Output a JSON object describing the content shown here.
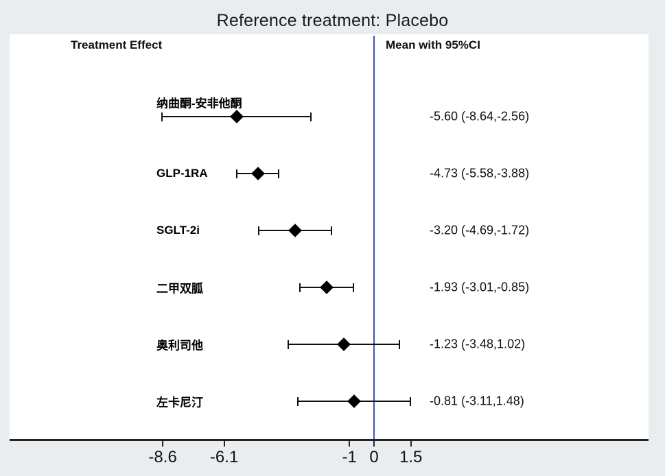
{
  "title": "Reference treatment: Placebo",
  "headers": {
    "left": "Treatment Effect",
    "right": "Mean with 95%CI"
  },
  "colors": {
    "background": "#e9edf0",
    "plot_background": "#ffffff",
    "reference_line": "#3d52b8",
    "axis": "#222222",
    "marker": "#000000"
  },
  "chart_data": {
    "type": "forest",
    "title": "Reference treatment: Placebo",
    "reference_treatment": "Placebo",
    "columns": [
      "Treatment Effect",
      "Mean with 95%CI"
    ],
    "treatments": [
      {
        "label": "纳曲酮-安非他酮",
        "mean": -5.6,
        "ci_low": -8.64,
        "ci_high": -2.56,
        "display": "-5.60 (-8.64,-2.56)"
      },
      {
        "label": "GLP-1RA",
        "mean": -4.73,
        "ci_low": -5.58,
        "ci_high": -3.88,
        "display": "-4.73 (-5.58,-3.88)"
      },
      {
        "label": "SGLT-2i",
        "mean": -3.2,
        "ci_low": -4.69,
        "ci_high": -1.72,
        "display": "-3.20 (-4.69,-1.72)"
      },
      {
        "label": "二甲双胍",
        "mean": -1.93,
        "ci_low": -3.01,
        "ci_high": -0.85,
        "display": "-1.93 (-3.01,-0.85)"
      },
      {
        "label": "奥利司他",
        "mean": -1.23,
        "ci_low": -3.48,
        "ci_high": 1.02,
        "display": "-1.23 (-3.48,1.02)"
      },
      {
        "label": "左卡尼汀",
        "mean": -0.81,
        "ci_low": -3.11,
        "ci_high": 1.48,
        "display": "-0.81 (-3.11,1.48)"
      }
    ],
    "x_ticks": [
      -8.6,
      -6.1,
      -1,
      0,
      1.5
    ],
    "x_tick_labels": [
      "-8.6",
      "-6.1",
      "-1",
      "0",
      "1.5"
    ],
    "reference_line_x": 0,
    "xlim": [
      -10.2,
      1.9
    ],
    "legend": "none",
    "grid": false
  }
}
